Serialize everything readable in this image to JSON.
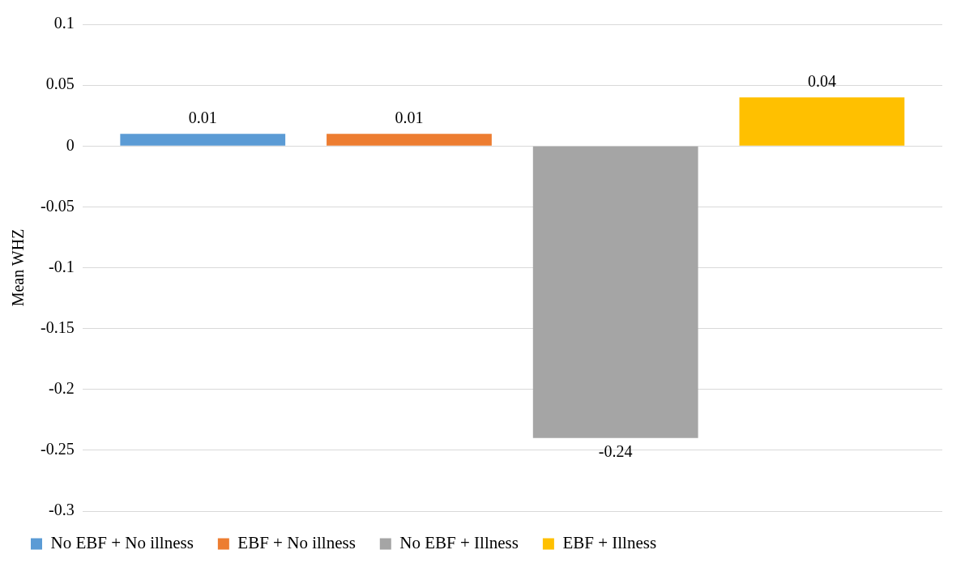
{
  "chart_data": {
    "type": "bar",
    "ylabel": "Mean WHZ",
    "categories": [
      null
    ],
    "series": [
      {
        "name": "No EBF + No illness",
        "color": "#5b9bd5",
        "values": [
          0.01
        ]
      },
      {
        "name": "EBF + No illness",
        "color": "#ed7d31",
        "values": [
          0.01
        ]
      },
      {
        "name": "No EBF + Illness",
        "color": "#a5a5a5",
        "values": [
          -0.24
        ]
      },
      {
        "name": "EBF + Illness",
        "color": "#ffc000",
        "values": [
          0.04
        ]
      }
    ],
    "ylim": [
      -0.3,
      0.1
    ],
    "yticks": [
      -0.3,
      -0.25,
      -0.2,
      -0.15,
      -0.1,
      -0.05,
      0,
      0.05,
      0.1
    ],
    "grid": "y",
    "legend": "bottom",
    "data_labels": true,
    "tick_labels": "y"
  }
}
